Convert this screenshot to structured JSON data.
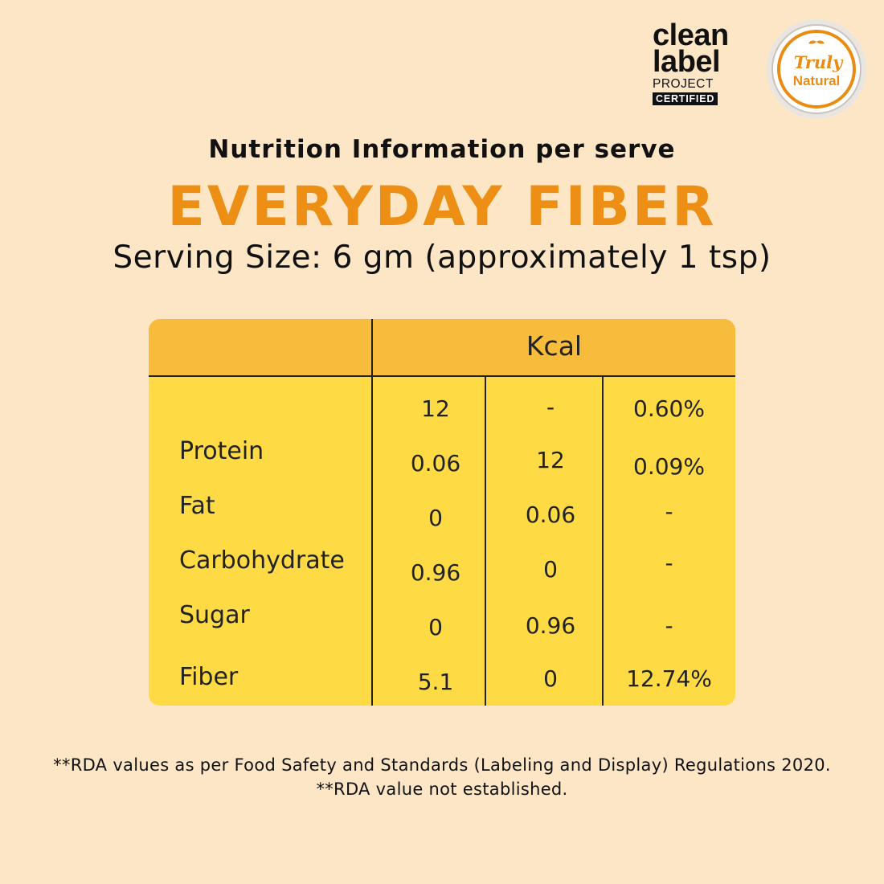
{
  "badges": {
    "clean_label": {
      "line1": "clean",
      "line2": "label",
      "line3": "PROJECT",
      "line4": "CERTIFIED"
    },
    "truly_natural": {
      "word1": "Truly",
      "word2": "Natural"
    }
  },
  "header": {
    "subtitle": "Nutrition Information per serve",
    "title": "EVERYDAY FIBER",
    "serving_size": "Serving Size: 6 gm (approximately 1 tsp)"
  },
  "table": {
    "header": "Kcal",
    "rows": [
      {
        "label": "",
        "c1": "12",
        "c2": "-",
        "c3": "0.60%"
      },
      {
        "label": "Protein",
        "c1": "0.06",
        "c2": "12",
        "c3": "0.09%"
      },
      {
        "label": "Fat",
        "c1": "0",
        "c2": "0.06",
        "c3": "-"
      },
      {
        "label": "Carbohydrate",
        "c1": "0.96",
        "c2": "0",
        "c3": "-"
      },
      {
        "label": "Sugar",
        "c1": "0",
        "c2": "0.96",
        "c3": "-"
      },
      {
        "label": "Fiber",
        "c1": "5.1",
        "c2": "0",
        "c3": "12.74%"
      }
    ]
  },
  "footnotes": {
    "line1": "**RDA values as per Food Safety and Standards (Labeling and Display) Regulations 2020.",
    "line2": "**RDA value not established."
  },
  "colors": {
    "background": "#fde6c6",
    "title_orange": "#ec8f14",
    "table_header": "#f8bc3d",
    "table_body": "#fedb44"
  }
}
